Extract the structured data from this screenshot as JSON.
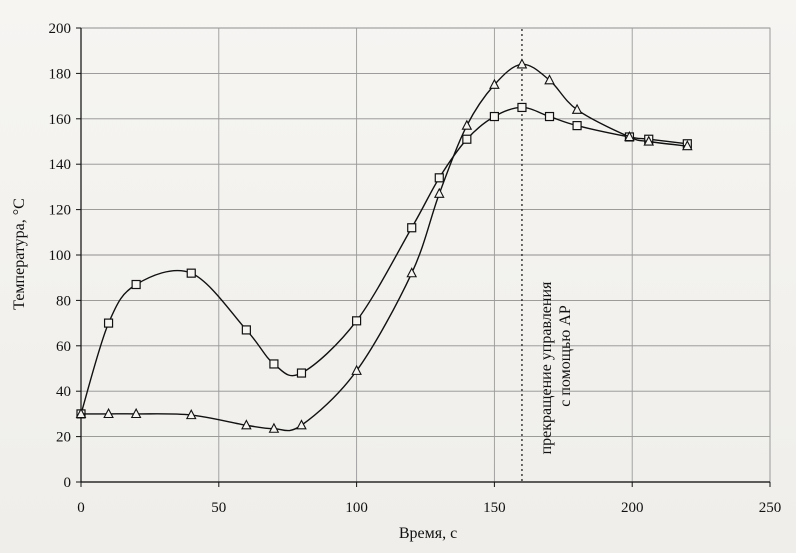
{
  "chart_data": {
    "type": "line",
    "title": "",
    "xlabel": "Время, с",
    "ylabel": "Температура, °С",
    "xlim": [
      0,
      250
    ],
    "ylim": [
      0,
      200
    ],
    "x_ticks": [
      0,
      50,
      100,
      150,
      200,
      250
    ],
    "y_ticks": [
      0,
      20,
      40,
      60,
      80,
      100,
      120,
      140,
      160,
      180,
      200
    ],
    "grid": true,
    "legend": "none",
    "annotation": {
      "x": 160,
      "line1": "прекращение управления",
      "line2": "с помощью АР"
    },
    "series": [
      {
        "marker": "square",
        "points": [
          {
            "x": 0,
            "y": 30
          },
          {
            "x": 10,
            "y": 70
          },
          {
            "x": 20,
            "y": 87
          },
          {
            "x": 40,
            "y": 92
          },
          {
            "x": 60,
            "y": 67
          },
          {
            "x": 70,
            "y": 52
          },
          {
            "x": 80,
            "y": 48
          },
          {
            "x": 100,
            "y": 71
          },
          {
            "x": 120,
            "y": 112
          },
          {
            "x": 130,
            "y": 134
          },
          {
            "x": 140,
            "y": 151
          },
          {
            "x": 150,
            "y": 161
          },
          {
            "x": 160,
            "y": 165
          },
          {
            "x": 170,
            "y": 161
          },
          {
            "x": 180,
            "y": 157
          },
          {
            "x": 199,
            "y": 152
          },
          {
            "x": 206,
            "y": 151
          },
          {
            "x": 220,
            "y": 149
          }
        ]
      },
      {
        "marker": "triangle",
        "points": [
          {
            "x": 0,
            "y": 30
          },
          {
            "x": 10,
            "y": 30
          },
          {
            "x": 20,
            "y": 30
          },
          {
            "x": 40,
            "y": 29.5
          },
          {
            "x": 60,
            "y": 25
          },
          {
            "x": 70,
            "y": 23.5
          },
          {
            "x": 80,
            "y": 25
          },
          {
            "x": 100,
            "y": 49
          },
          {
            "x": 120,
            "y": 92
          },
          {
            "x": 130,
            "y": 127
          },
          {
            "x": 140,
            "y": 157
          },
          {
            "x": 150,
            "y": 175
          },
          {
            "x": 160,
            "y": 184
          },
          {
            "x": 170,
            "y": 177
          },
          {
            "x": 180,
            "y": 164
          },
          {
            "x": 199,
            "y": 152
          },
          {
            "x": 206,
            "y": 150
          },
          {
            "x": 220,
            "y": 148
          }
        ]
      }
    ]
  }
}
